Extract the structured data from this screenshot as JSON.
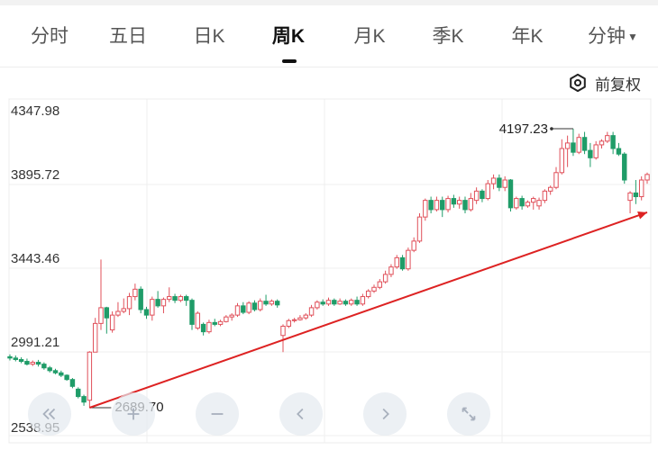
{
  "tabs": [
    {
      "label": "分时"
    },
    {
      "label": "五日"
    },
    {
      "label": "日K"
    },
    {
      "label": "周K"
    },
    {
      "label": "月K"
    },
    {
      "label": "季K"
    },
    {
      "label": "年K"
    },
    {
      "label": "分钟"
    }
  ],
  "active_tab": "周K",
  "adjust": {
    "label": "前复权",
    "icon": "settings-hexagon-icon"
  },
  "controls": [
    {
      "icon": "double-chevron-left-icon"
    },
    {
      "icon": "zoom-in-icon"
    },
    {
      "icon": "zoom-out-icon"
    },
    {
      "icon": "chevron-left-icon"
    },
    {
      "icon": "chevron-right-icon"
    },
    {
      "icon": "fullscreen-icon"
    }
  ],
  "chart_data": {
    "type": "candlestick",
    "period": "weekly",
    "y_ticks": [
      "4347.98",
      "3895.72",
      "3443.46",
      "2991.21",
      "2538.95"
    ],
    "ylim": [
      2538.95,
      4347.98
    ],
    "max_label": "4197.23",
    "min_label": "2689.70",
    "up_color": "#e0505a",
    "down_color": "#1f9c68",
    "trend_line_color": "#dd2222",
    "trend_line": {
      "from": 2689.7,
      "to": 3745
    },
    "ohlc": [
      [
        2965,
        2958,
        2978,
        2945
      ],
      [
        2958,
        2950,
        2972,
        2940
      ],
      [
        2950,
        2940,
        2962,
        2930
      ],
      [
        2940,
        2925,
        2955,
        2918
      ],
      [
        2925,
        2935,
        2945,
        2915
      ],
      [
        2935,
        2925,
        2948,
        2912
      ],
      [
        2925,
        2905,
        2935,
        2895
      ],
      [
        2905,
        2890,
        2915,
        2880
      ],
      [
        2890,
        2878,
        2900,
        2870
      ],
      [
        2878,
        2865,
        2890,
        2855
      ],
      [
        2865,
        2842,
        2870,
        2835
      ],
      [
        2842,
        2805,
        2850,
        2795
      ],
      [
        2790,
        2750,
        2800,
        2740
      ],
      [
        2750,
        2720,
        2760,
        2700
      ],
      [
        2730,
        2990,
        2995,
        2690
      ],
      [
        2990,
        3145,
        3175,
        3085
      ],
      [
        3145,
        3230,
        3490,
        3110
      ],
      [
        3230,
        3175,
        3235,
        3090
      ],
      [
        3110,
        3190,
        3210,
        3095
      ],
      [
        3190,
        3210,
        3260,
        3180
      ],
      [
        3210,
        3225,
        3280,
        3200
      ],
      [
        3225,
        3290,
        3310,
        3190
      ],
      [
        3290,
        3330,
        3360,
        3270
      ],
      [
        3330,
        3220,
        3345,
        3200
      ],
      [
        3220,
        3190,
        3235,
        3170
      ],
      [
        3190,
        3275,
        3290,
        3160
      ],
      [
        3275,
        3240,
        3320,
        3230
      ],
      [
        3240,
        3275,
        3285,
        3200
      ],
      [
        3275,
        3290,
        3340,
        3260
      ],
      [
        3290,
        3270,
        3305,
        3255
      ],
      [
        3270,
        3290,
        3300,
        3260
      ],
      [
        3290,
        3270,
        3300,
        3240
      ],
      [
        3270,
        3140,
        3280,
        3110
      ],
      [
        3120,
        3200,
        3210,
        3110
      ],
      [
        3140,
        3100,
        3150,
        3080
      ],
      [
        3100,
        3150,
        3165,
        3090
      ],
      [
        3150,
        3140,
        3170,
        3130
      ],
      [
        3140,
        3155,
        3165,
        3130
      ],
      [
        3155,
        3180,
        3190,
        3150
      ],
      [
        3180,
        3190,
        3200,
        3160
      ],
      [
        3190,
        3240,
        3255,
        3180
      ],
      [
        3240,
        3205,
        3260,
        3195
      ],
      [
        3205,
        3255,
        3265,
        3195
      ],
      [
        3255,
        3220,
        3270,
        3210
      ],
      [
        3220,
        3265,
        3280,
        3210
      ],
      [
        3265,
        3250,
        3300,
        3240
      ],
      [
        3250,
        3265,
        3275,
        3240
      ],
      [
        3265,
        3245,
        3275,
        3230
      ],
      [
        3080,
        3130,
        3140,
        2990
      ],
      [
        3130,
        3160,
        3170,
        3120
      ],
      [
        3160,
        3165,
        3175,
        3150
      ],
      [
        3165,
        3175,
        3190,
        3160
      ],
      [
        3175,
        3190,
        3200,
        3165
      ],
      [
        3190,
        3230,
        3245,
        3180
      ],
      [
        3230,
        3260,
        3270,
        3220
      ],
      [
        3260,
        3250,
        3275,
        3240
      ],
      [
        3250,
        3270,
        3285,
        3240
      ],
      [
        3270,
        3250,
        3280,
        3240
      ],
      [
        3250,
        3265,
        3280,
        3245
      ],
      [
        3265,
        3250,
        3275,
        3240
      ],
      [
        3250,
        3270,
        3280,
        3240
      ],
      [
        3270,
        3250,
        3290,
        3240
      ],
      [
        3250,
        3290,
        3305,
        3240
      ],
      [
        3290,
        3320,
        3330,
        3280
      ],
      [
        3320,
        3340,
        3355,
        3310
      ],
      [
        3340,
        3370,
        3385,
        3330
      ],
      [
        3370,
        3410,
        3430,
        3360
      ],
      [
        3410,
        3450,
        3465,
        3395
      ],
      [
        3450,
        3500,
        3515,
        3440
      ],
      [
        3500,
        3440,
        3515,
        3430
      ],
      [
        3440,
        3540,
        3555,
        3430
      ],
      [
        3540,
        3590,
        3610,
        3530
      ],
      [
        3590,
        3720,
        3740,
        3580
      ],
      [
        3720,
        3810,
        3820,
        3700
      ],
      [
        3810,
        3760,
        3830,
        3740
      ],
      [
        3760,
        3810,
        3830,
        3750
      ],
      [
        3810,
        3760,
        3830,
        3720
      ],
      [
        3760,
        3820,
        3835,
        3745
      ],
      [
        3820,
        3790,
        3840,
        3770
      ],
      [
        3790,
        3810,
        3830,
        3765
      ],
      [
        3810,
        3760,
        3830,
        3740
      ],
      [
        3760,
        3820,
        3850,
        3750
      ],
      [
        3810,
        3860,
        3880,
        3790
      ],
      [
        3860,
        3820,
        3870,
        3800
      ],
      [
        3820,
        3900,
        3920,
        3810
      ],
      [
        3900,
        3930,
        3950,
        3870
      ],
      [
        3930,
        3880,
        3950,
        3860
      ],
      [
        3880,
        3920,
        3940,
        3860
      ],
      [
        3920,
        3770,
        3925,
        3750
      ],
      [
        3770,
        3820,
        3830,
        3760
      ],
      [
        3820,
        3780,
        3835,
        3760
      ],
      [
        3780,
        3800,
        3810,
        3770
      ],
      [
        3800,
        3820,
        3830,
        3760
      ],
      [
        3780,
        3810,
        3825,
        3760
      ],
      [
        3810,
        3860,
        3870,
        3795
      ],
      [
        3860,
        3880,
        3890,
        3840
      ],
      [
        3880,
        3960,
        3990,
        3870
      ],
      [
        3960,
        4090,
        4140,
        3950
      ],
      [
        4090,
        4120,
        4160,
        3990
      ],
      [
        4120,
        4070,
        4197,
        4050
      ],
      [
        4070,
        4150,
        4170,
        4060
      ],
      [
        4150,
        4080,
        4180,
        4060
      ],
      [
        4080,
        4040,
        4120,
        3990
      ],
      [
        4040,
        4110,
        4130,
        4030
      ],
      [
        4110,
        4130,
        4140,
        4090
      ],
      [
        4130,
        4160,
        4180,
        4120
      ],
      [
        4160,
        4090,
        4180,
        4060
      ],
      [
        4090,
        4060,
        4120,
        4050
      ],
      [
        4060,
        3920,
        4070,
        3900
      ],
      [
        3810,
        3850,
        3860,
        3740
      ],
      [
        3850,
        3830,
        3920,
        3790
      ],
      [
        3830,
        3920,
        3940,
        3810
      ],
      [
        3920,
        3950,
        3960,
        3900
      ]
    ]
  }
}
